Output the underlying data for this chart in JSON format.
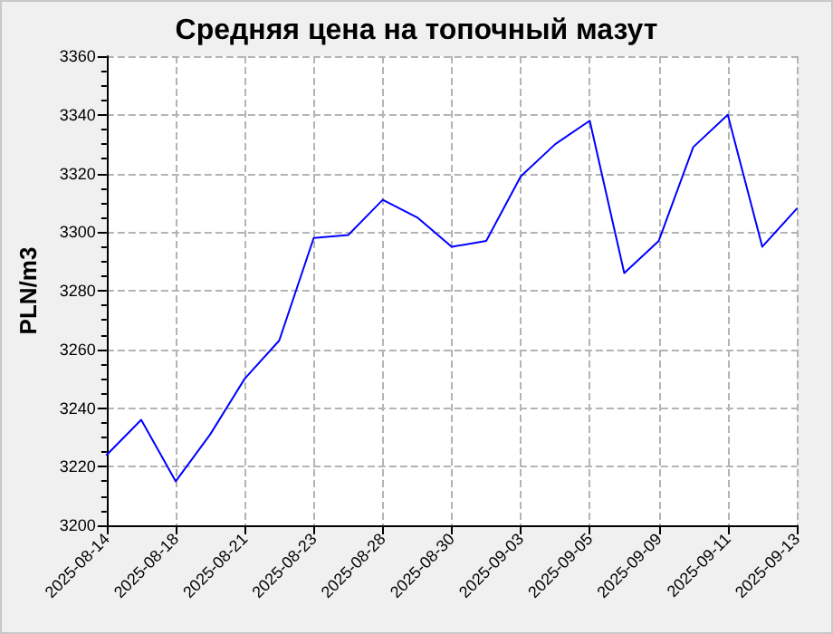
{
  "chart_data": {
    "type": "line",
    "title": "Средняя цена на топочный мазут",
    "ylabel": "PLN/m3",
    "categories": [
      "2025-08-14",
      null,
      "2025-08-18",
      null,
      "2025-08-21",
      null,
      "2025-08-23",
      null,
      "2025-08-28",
      null,
      "2025-08-30",
      null,
      "2025-09-03",
      null,
      "2025-09-05",
      null,
      "2025-09-09",
      null,
      "2025-09-11",
      null,
      "2025-09-13"
    ],
    "series": [
      {
        "color": "#0000ff",
        "values": [
          3224,
          3236,
          3215,
          3231,
          3250,
          3263,
          3298,
          3299,
          3311,
          3305,
          3295,
          3297,
          3319,
          3330,
          3338,
          3286,
          3297,
          3329,
          3340,
          3295,
          3308
        ]
      }
    ],
    "ylim": [
      3200,
      3360
    ],
    "yticks": [
      3200,
      3220,
      3240,
      3260,
      3280,
      3300,
      3320,
      3340,
      3360
    ],
    "grid": true,
    "marker": "none",
    "line_style": "solid"
  }
}
